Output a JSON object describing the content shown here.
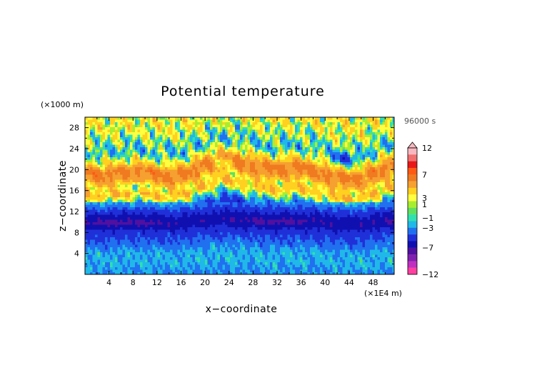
{
  "chart_data": {
    "type": "heatmap",
    "title": "Potential temperature",
    "xlabel": "x−coordinate",
    "ylabel": "z−coordinate",
    "x_unit": "(×1E4 m)",
    "y_unit": "(×1000 m)",
    "time_label": "96000 s",
    "xlim": [
      0,
      51.5
    ],
    "ylim": [
      0,
      30
    ],
    "x_ticks": [
      "4",
      "8",
      "12",
      "16",
      "20",
      "24",
      "28",
      "32",
      "36",
      "40",
      "44",
      "48"
    ],
    "y_ticks": [
      "4",
      "8",
      "12",
      "16",
      "20",
      "24",
      "28"
    ],
    "colorbar": {
      "labels": [
        "12",
        "7",
        "3",
        "1",
        "−1",
        "−3",
        "−7",
        "−12"
      ],
      "levels": [
        12,
        7,
        3,
        1,
        -1,
        -3,
        -7,
        -12
      ],
      "colors": [
        "#f9b8c0",
        "#f07070",
        "#e81818",
        "#ff5a14",
        "#f07a20",
        "#f5a030",
        "#ffd020",
        "#ffff40",
        "#a8ee30",
        "#60e060",
        "#30e0b0",
        "#20b8e8",
        "#2070f0",
        "#2030d8",
        "#1010b0",
        "#5010a0",
        "#8020b0",
        "#c030c0",
        "#ff40a0"
      ]
    },
    "vertical_profile": [
      {
        "z": 0.5,
        "value": -1.0
      },
      {
        "z": 2.5,
        "value": -0.7
      },
      {
        "z": 4.5,
        "value": -0.8
      },
      {
        "z": 6.5,
        "value": -1.7
      },
      {
        "z": 8.5,
        "value": -2.6
      },
      {
        "z": 10.0,
        "value": -4.2
      },
      {
        "z": 11.5,
        "value": -3.0
      },
      {
        "z": 13.0,
        "value": -1.6
      },
      {
        "z": 14.5,
        "value": -0.2
      },
      {
        "z": 16.0,
        "value": 1.6
      },
      {
        "z": 17.5,
        "value": 1.0
      },
      {
        "z": 19.0,
        "value": 2.8
      },
      {
        "z": 20.5,
        "value": 3.5
      },
      {
        "z": 22.0,
        "value": 1.0
      },
      {
        "z": 24.0,
        "value": -0.5
      },
      {
        "z": 26.5,
        "value": 0.1
      },
      {
        "z": 29.0,
        "value": 0.7
      }
    ]
  }
}
